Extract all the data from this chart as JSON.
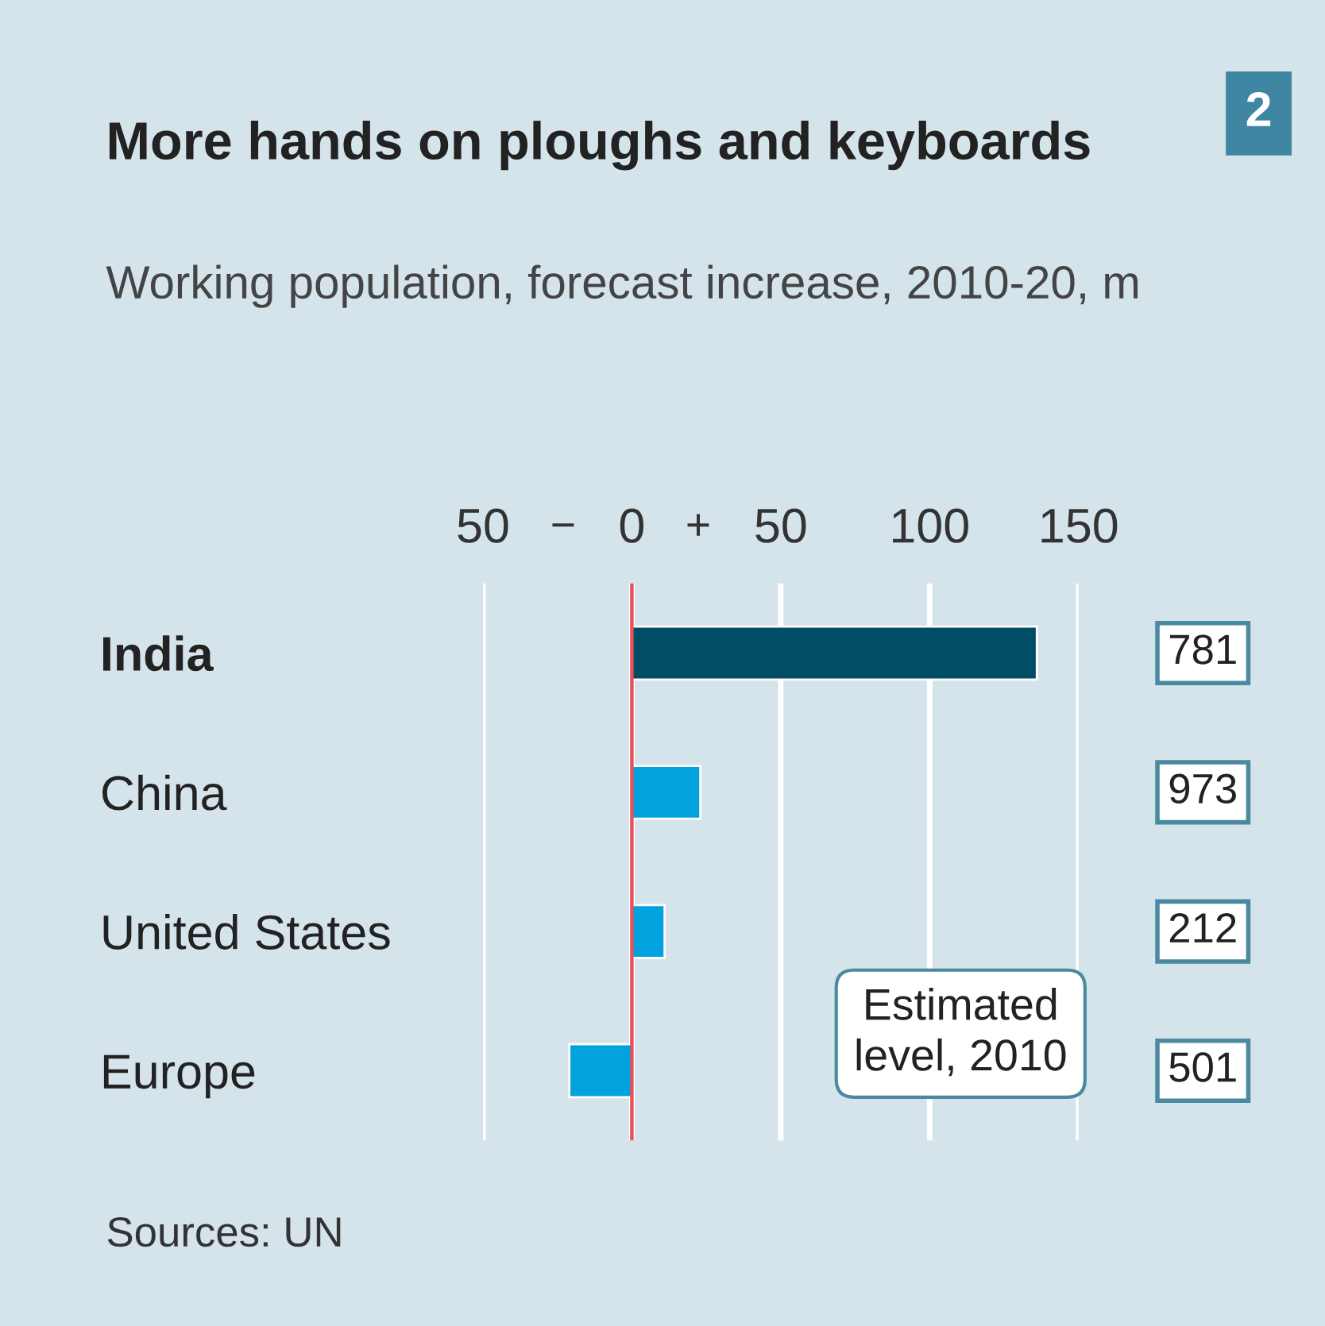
{
  "chart_data": {
    "type": "bar",
    "orientation": "horizontal",
    "title": "More hands on ploughs and keyboards",
    "subtitle": "Working population, forecast increase, 2010-20, m",
    "categories": [
      "India",
      "China",
      "United States",
      "Europe"
    ],
    "values": [
      136,
      23,
      11,
      -21
    ],
    "colors": [
      "#004d66",
      "#00a3dd",
      "#00a3dd",
      "#00a3dd"
    ],
    "xlim": [
      -50,
      150
    ],
    "xticks": [
      {
        "value": -50,
        "label": "50"
      },
      0,
      50,
      100,
      150
    ],
    "grid": "x",
    "ref_lines": [
      {
        "axis": "x",
        "value": 0,
        "color": "#e8505b"
      }
    ],
    "annotations": [
      "2",
      "−",
      "+",
      "781",
      "973",
      "212",
      "501",
      "Estimated level, 2010",
      "Sources: UN"
    ]
  }
}
